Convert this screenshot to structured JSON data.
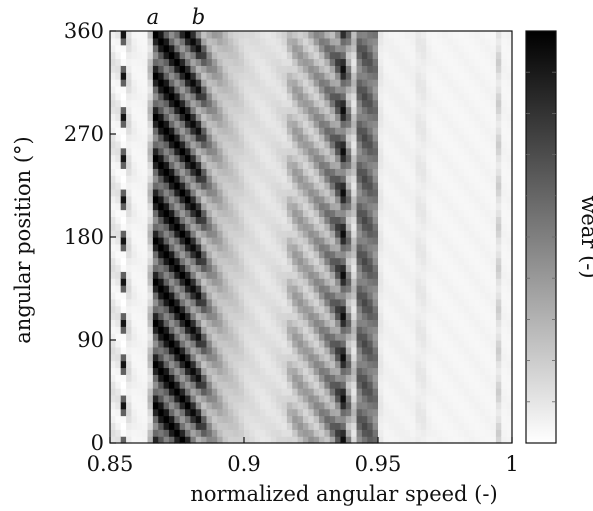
{
  "chart_data": {
    "type": "heatmap",
    "title": "",
    "xlabel": "normalized angular speed (-)",
    "ylabel": "angular position (°)",
    "colorbar_label": "wear (-)",
    "xlim": [
      0.85,
      1.0
    ],
    "ylim": [
      0,
      360
    ],
    "xticks": [
      0.85,
      0.9,
      0.95,
      1.0
    ],
    "xtick_labels": [
      "0.85",
      "0.9",
      "0.95",
      "1"
    ],
    "yticks": [
      0,
      90,
      180,
      270,
      360
    ],
    "ytick_labels": [
      "0",
      "90",
      "180",
      "270",
      "360"
    ],
    "colormap": [
      "#ffffff",
      "#000000"
    ],
    "annotations": [
      {
        "text": "a",
        "x": 0.866
      },
      {
        "text": "b",
        "x": 0.883
      }
    ],
    "x": [
      0.851,
      0.853,
      0.855,
      0.857,
      0.859,
      0.861,
      0.863,
      0.865,
      0.867,
      0.869,
      0.871,
      0.873,
      0.875,
      0.877,
      0.879,
      0.881,
      0.883,
      0.885,
      0.887,
      0.889,
      0.891,
      0.893,
      0.895,
      0.897,
      0.899,
      0.901,
      0.903,
      0.905,
      0.907,
      0.909,
      0.911,
      0.913,
      0.915,
      0.917,
      0.919,
      0.921,
      0.923,
      0.925,
      0.927,
      0.929,
      0.931,
      0.933,
      0.935,
      0.937,
      0.939,
      0.941,
      0.943,
      0.945,
      0.947,
      0.949,
      0.951,
      0.953,
      0.955,
      0.957,
      0.959,
      0.961,
      0.963,
      0.965,
      0.967,
      0.969,
      0.971,
      0.973,
      0.975,
      0.977,
      0.979,
      0.981,
      0.983,
      0.985,
      0.987,
      0.989,
      0.991,
      0.993,
      0.995,
      0.997,
      0.999
    ],
    "profile": {
      "base": [
        0.08,
        0.07,
        0.32,
        0.1,
        0.05,
        0.04,
        0.04,
        0.2,
        0.72,
        0.78,
        0.76,
        0.74,
        0.72,
        0.7,
        0.7,
        0.66,
        0.62,
        0.5,
        0.4,
        0.34,
        0.3,
        0.25,
        0.22,
        0.2,
        0.17,
        0.14,
        0.13,
        0.12,
        0.11,
        0.11,
        0.12,
        0.13,
        0.14,
        0.22,
        0.28,
        0.3,
        0.28,
        0.3,
        0.32,
        0.36,
        0.4,
        0.45,
        0.55,
        0.7,
        0.42,
        0.2,
        0.55,
        0.6,
        0.58,
        0.5,
        0.08,
        0.05,
        0.05,
        0.05,
        0.05,
        0.05,
        0.05,
        0.08,
        0.08,
        0.05,
        0.04,
        0.04,
        0.04,
        0.04,
        0.04,
        0.04,
        0.04,
        0.04,
        0.04,
        0.04,
        0.04,
        0.04,
        0.14,
        0.04,
        0.04
      ],
      "stripe_amplitude": [
        0.05,
        0.05,
        0.6,
        0.05,
        0.02,
        0.01,
        0.01,
        0.1,
        0.28,
        0.25,
        0.28,
        0.3,
        0.3,
        0.3,
        0.3,
        0.3,
        0.32,
        0.26,
        0.15,
        0.12,
        0.08,
        0.05,
        0.04,
        0.03,
        0.03,
        0.02,
        0.02,
        0.02,
        0.02,
        0.02,
        0.02,
        0.03,
        0.04,
        0.1,
        0.12,
        0.12,
        0.12,
        0.14,
        0.15,
        0.16,
        0.18,
        0.2,
        0.22,
        0.25,
        0.2,
        0.1,
        0.12,
        0.12,
        0.1,
        0.1,
        0.02,
        0.01,
        0.01,
        0.01,
        0.01,
        0.01,
        0.01,
        0.02,
        0.02,
        0.01,
        0.01,
        0.01,
        0.01,
        0.01,
        0.01,
        0.01,
        0.01,
        0.01,
        0.01,
        0.01,
        0.01,
        0.01,
        0.06,
        0.01,
        0.01
      ],
      "stripe_period_deg": 36,
      "stripe_tilt_deg_per_column": 6
    }
  }
}
